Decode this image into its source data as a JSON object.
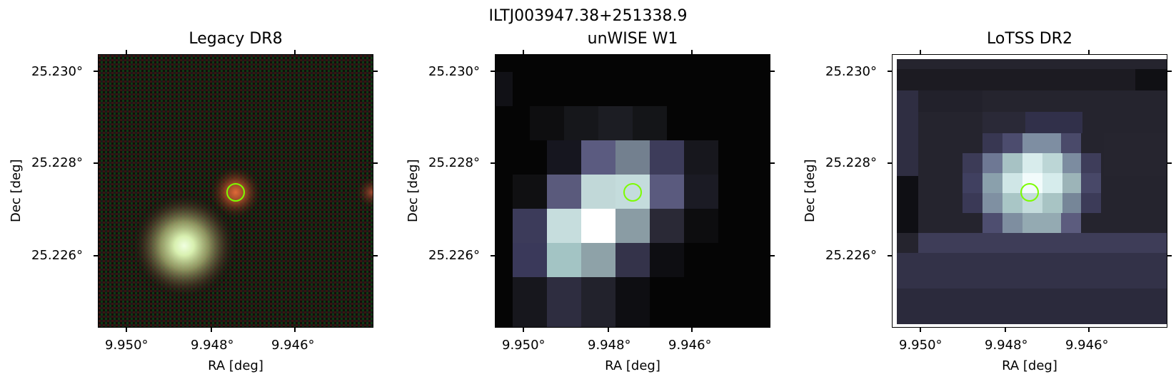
{
  "figure": {
    "suptitle": "ILTJ003947.38+251338.9"
  },
  "panels": [
    {
      "title": "Legacy DR8",
      "xlabel": "RA [deg]",
      "ylabel": "Dec [deg]",
      "xticks": [
        "9.950°",
        "9.948°",
        "9.946°"
      ],
      "yticks": [
        "25.230°",
        "25.228°",
        "25.226°"
      ],
      "image_kind": "color-optical",
      "marker_color": "#7CFC00"
    },
    {
      "title": "unWISE W1",
      "xlabel": "RA [deg]",
      "ylabel": "Dec [deg]",
      "xticks": [
        "9.950°",
        "9.948°",
        "9.946°"
      ],
      "yticks": [
        "25.230°",
        "25.228°",
        "25.226°"
      ],
      "image_kind": "grayscale-pixels",
      "marker_color": "#7CFC00"
    },
    {
      "title": "LoTSS DR2",
      "xlabel": "RA [deg]",
      "ylabel": "Dec [deg]",
      "xticks": [
        "9.950°",
        "9.948°",
        "9.946°"
      ],
      "yticks": [
        "25.230°",
        "25.228°",
        "25.226°"
      ],
      "image_kind": "grayscale-pixels",
      "marker_color": "#7CFC00"
    }
  ]
}
